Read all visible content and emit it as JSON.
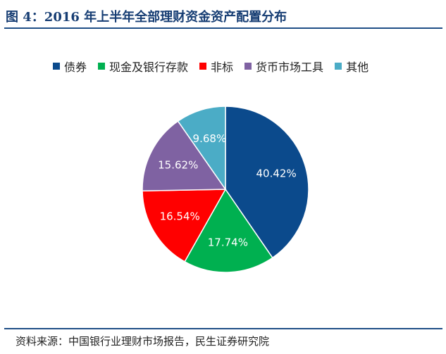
{
  "title": "图 4：2016 年上半年全部理财资金资产配置分布",
  "source": "资料来源：中国银行业理财市场报告，民生证券研究院",
  "chart_data": {
    "type": "pie",
    "title": "",
    "legend_position": "top",
    "series": [
      {
        "name": "债券",
        "value": 40.42,
        "label": "40.42%",
        "color": "#0b4a8c"
      },
      {
        "name": "现金及银行存款",
        "value": 17.74,
        "label": "17.74%",
        "color": "#00b050"
      },
      {
        "name": "非标",
        "value": 16.54,
        "label": "16.54%",
        "color": "#ff0000"
      },
      {
        "name": "货币市场工具",
        "value": 15.62,
        "label": "15.62%",
        "color": "#7f62a2"
      },
      {
        "name": "其他",
        "value": 9.68,
        "label": "9.68%",
        "color": "#4bacc6"
      }
    ]
  }
}
